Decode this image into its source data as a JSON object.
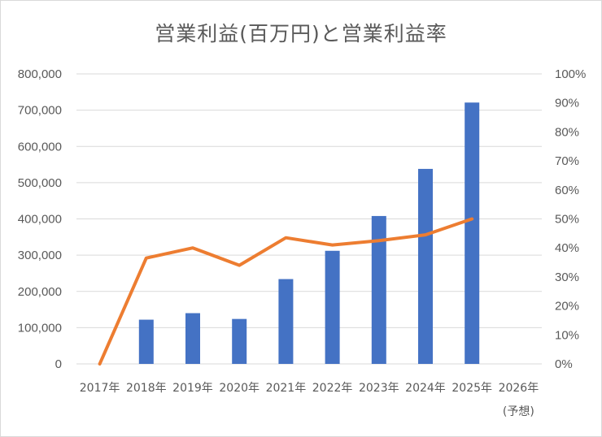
{
  "chart_data": {
    "type": "bar+line",
    "title": "営業利益(百万円)と営業利益率",
    "categories": [
      "2017年",
      "2018年",
      "2019年",
      "2020年",
      "2021年",
      "2022年",
      "2023年",
      "2024年",
      "2025年",
      "2026年"
    ],
    "category_sublabels": [
      "",
      "",
      "",
      "",
      "",
      "",
      "",
      "",
      "",
      "(予想)"
    ],
    "series": [
      {
        "type": "bar",
        "axis": "left",
        "values": [
          null,
          122000,
          140000,
          124000,
          234000,
          312000,
          408000,
          538000,
          721000,
          null
        ]
      },
      {
        "type": "line",
        "axis": "right",
        "values": [
          0,
          0.365,
          0.4,
          0.34,
          0.435,
          0.41,
          0.425,
          0.445,
          0.5,
          null
        ]
      }
    ],
    "y_left": {
      "ylim": [
        0,
        800000
      ],
      "ticks": [
        "0",
        "100,000",
        "200,000",
        "300,000",
        "400,000",
        "500,000",
        "600,000",
        "700,000",
        "800,000"
      ]
    },
    "y_right": {
      "ylim": [
        0,
        1
      ],
      "ticks": [
        "0%",
        "10%",
        "20%",
        "30%",
        "40%",
        "50%",
        "60%",
        "70%",
        "80%",
        "90%",
        "100%"
      ]
    },
    "grid": true,
    "legend": "none",
    "colors": {
      "bar": "#4472c4",
      "line": "#ed7d31",
      "grid": "#d9d9d9",
      "text": "#595959"
    }
  }
}
